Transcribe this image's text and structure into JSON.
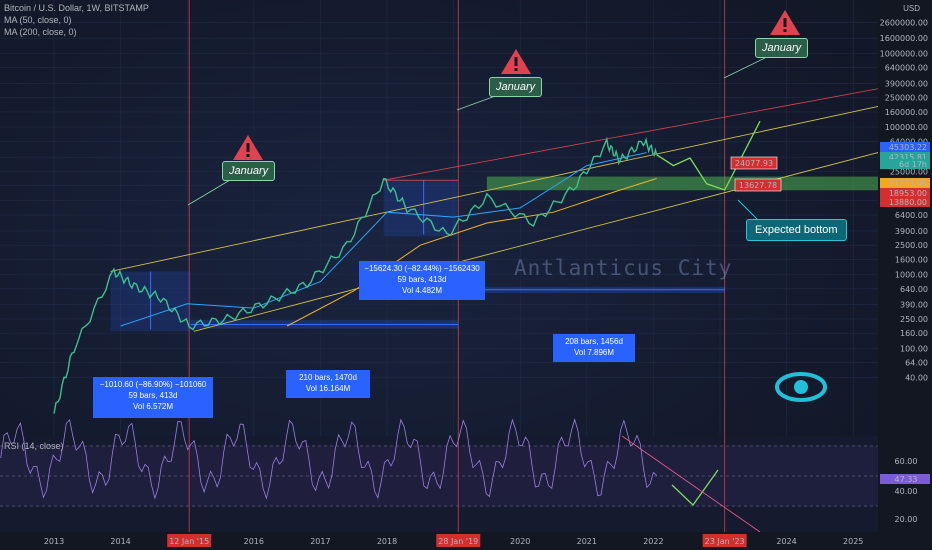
{
  "header": {
    "symbol": "Bitcoin / U.S. Dollar, 1W, BITSTAMP",
    "ma50": "MA (50, close, 0)",
    "ma200": "MA (200, close, 0)",
    "rsi": "RSI (14, close)",
    "currency": "USD"
  },
  "price_scale": [
    "2600000.00",
    "1600000.00",
    "1000000.00",
    "640000.00",
    "390000.00",
    "250000.00",
    "160000.00",
    "100000.00",
    "64000.00",
    "39000.00",
    "25000.00",
    "16000.00",
    "10000.00",
    "6400.00",
    "3900.00",
    "2500.00",
    "1600.00",
    "1000.00",
    "640.00",
    "390.00",
    "250.00",
    "160.00",
    "100.00",
    "64.00",
    "40.00"
  ],
  "rsi_scale": [
    "60.00",
    "40.00",
    "20.00"
  ],
  "price_tags": [
    {
      "text": "45303.22",
      "color": "#2962ff"
    },
    {
      "text": "42315.81",
      "color": "#26a69a"
    },
    {
      "text": "6d 17h",
      "color": "#26a69a"
    },
    {
      "text": "21273.06",
      "color": "#f5a623"
    },
    {
      "text": "18953.00",
      "color": "#d32f2f"
    },
    {
      "text": "13880.00",
      "color": "#d32f2f"
    }
  ],
  "rsi_tag": "47.33",
  "chart_data": {
    "type": "line",
    "title": "Bitcoin / U.S. Dollar, 1W, BITSTAMP",
    "y_scale": "log",
    "x_ticks": [
      "2013",
      "2014",
      "12 Jan '15",
      "2016",
      "2017",
      "2018",
      "28 Jan '19",
      "2020",
      "2021",
      "2022",
      "23 Jan '23",
      "2024",
      "2025"
    ],
    "highlighted_dates": [
      "12 Jan '15",
      "28 Jan '19",
      "23 Jan '23"
    ],
    "price_series": {
      "x": [
        2013.0,
        2013.3,
        2013.9,
        2014.2,
        2014.6,
        2015.03,
        2015.6,
        2016.2,
        2016.8,
        2017.4,
        2017.95,
        2018.3,
        2018.9,
        2019.5,
        2020.2,
        2020.8,
        2021.3,
        2021.5,
        2021.85,
        2022.05
      ],
      "y": [
        13,
        100,
        1100,
        700,
        480,
        200,
        250,
        420,
        750,
        2500,
        19000,
        8000,
        3500,
        11000,
        5000,
        15000,
        60000,
        35000,
        64000,
        42000
      ]
    },
    "ma50": {
      "x": [
        2014.0,
        2015.0,
        2016.0,
        2017.0,
        2018.0,
        2019.0,
        2020.0,
        2021.0,
        2021.9
      ],
      "y": [
        200,
        400,
        350,
        800,
        7000,
        6000,
        8000,
        30000,
        45000
      ]
    },
    "ma200": {
      "x": [
        2016.5,
        2017.5,
        2018.5,
        2019.5,
        2020.5,
        2021.5,
        2022.05
      ],
      "y": [
        200,
        600,
        2500,
        5000,
        7000,
        14000,
        20000
      ]
    },
    "drawdowns": [
      {
        "text": "−1010.60 (−86.90%) −101060",
        "bars": "59 bars, 413d",
        "vol": "Vol 6.572M"
      },
      {
        "text": "−15624.30 (−82.44%) −1562430",
        "bars": "59 bars, 413d",
        "vol": "Vol 4.482M"
      }
    ],
    "cycles": [
      {
        "bars": "210 bars, 1470d",
        "vol": "Vol 16.164M"
      },
      {
        "bars": "208 bars, 1456d",
        "vol": "Vol 7.896M"
      }
    ],
    "annotations": [
      "January",
      "January",
      "January",
      "Expected bottom",
      "24077.93",
      "13627.78"
    ]
  },
  "watermark": "Antlanticus City"
}
